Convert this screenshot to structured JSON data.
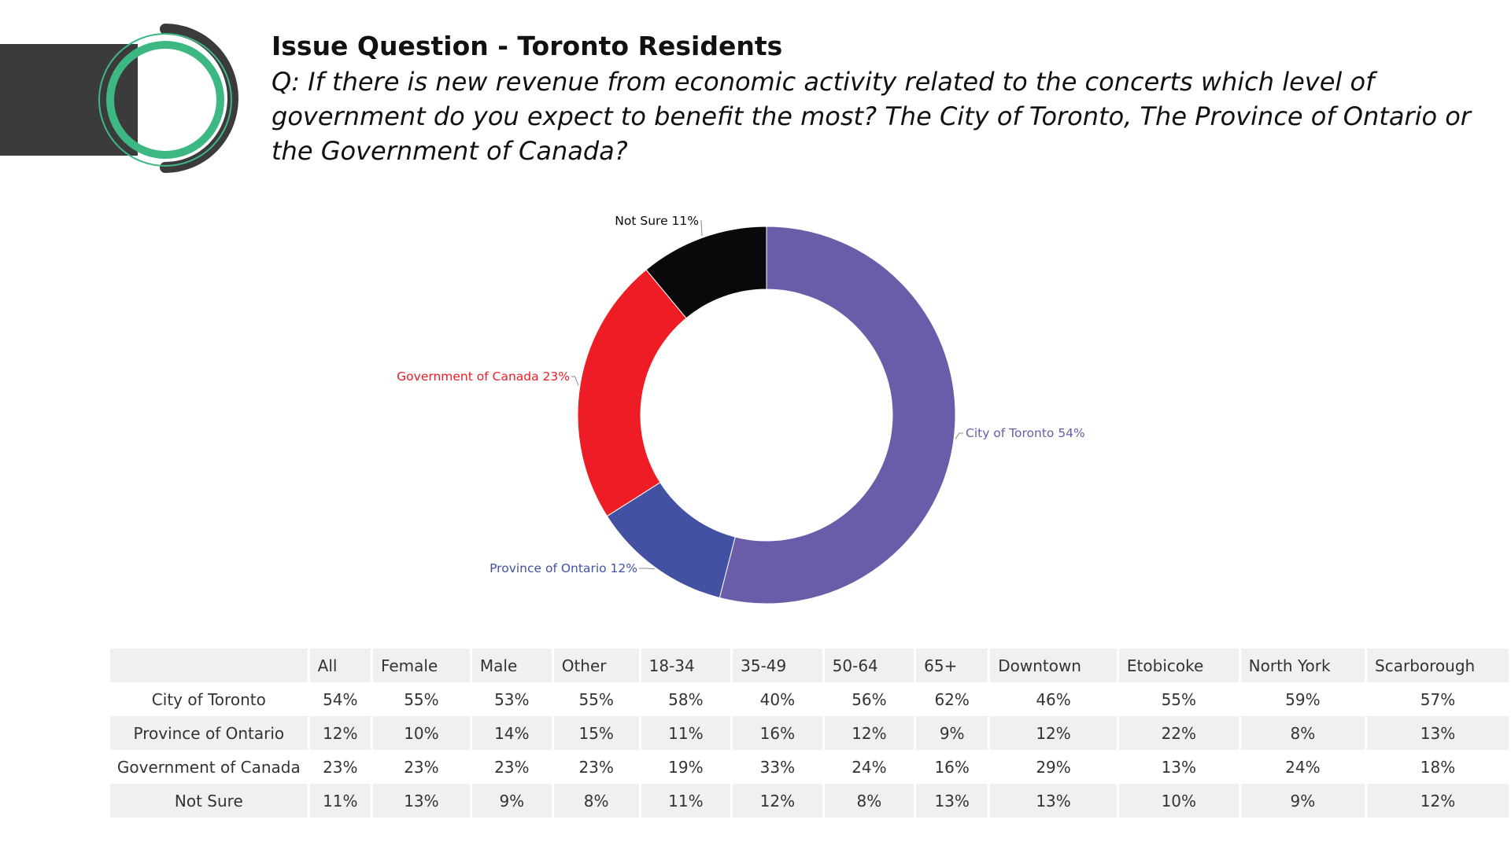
{
  "header": {
    "title": "Issue Question - Toronto Residents",
    "question": "Q: If there is new revenue from economic activity related to the concerts which level of government do you expect to benefit the most? The City of Toronto, The Province of Ontario or the Government of Canada?"
  },
  "colors": {
    "city": "#695ca9",
    "province": "#4251a2",
    "canada": "#ee1c24",
    "not_sure": "#09090b",
    "logo_green": "#3db883",
    "dark_bar": "#3b3b3c"
  },
  "chart_data": {
    "type": "pie",
    "variant": "donut",
    "title": "",
    "slices": [
      {
        "label": "City of Toronto",
        "value": 54,
        "display": "City of Toronto 54%",
        "color": "#695ca9"
      },
      {
        "label": "Province of Ontario",
        "value": 12,
        "display": "Province of Ontario 12%",
        "color": "#4251a2"
      },
      {
        "label": "Government of Canada",
        "value": 23,
        "display": "Government of Canada 23%",
        "color": "#ee1c24"
      },
      {
        "label": "Not Sure",
        "value": 11,
        "display": "Not Sure 11%",
        "color": "#09090b"
      }
    ]
  },
  "table": {
    "columns": [
      "All",
      "Female",
      "Male",
      "Other",
      "18-34",
      "35-49",
      "50-64",
      "65+",
      "Downtown",
      "Etobicoke",
      "North York",
      "Scarborough"
    ],
    "rows": [
      {
        "label": "City of Toronto",
        "values": [
          "54%",
          "55%",
          "53%",
          "55%",
          "58%",
          "40%",
          "56%",
          "62%",
          "46%",
          "55%",
          "59%",
          "57%"
        ]
      },
      {
        "label": "Province of Ontario",
        "values": [
          "12%",
          "10%",
          "14%",
          "15%",
          "11%",
          "16%",
          "12%",
          "9%",
          "12%",
          "22%",
          "8%",
          "13%"
        ]
      },
      {
        "label": "Government of Canada",
        "values": [
          "23%",
          "23%",
          "23%",
          "23%",
          "19%",
          "33%",
          "24%",
          "16%",
          "29%",
          "13%",
          "24%",
          "18%"
        ]
      },
      {
        "label": "Not Sure",
        "values": [
          "11%",
          "13%",
          "9%",
          "8%",
          "11%",
          "12%",
          "8%",
          "13%",
          "13%",
          "10%",
          "9%",
          "12%"
        ]
      }
    ]
  }
}
